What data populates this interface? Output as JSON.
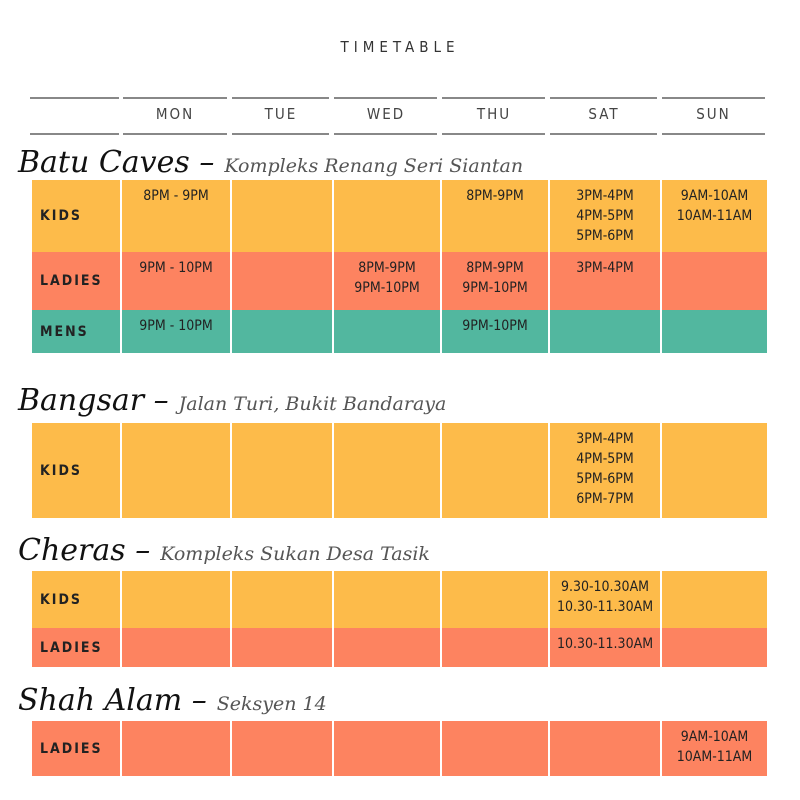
{
  "title": "TIMETABLE",
  "days": [
    "MON",
    "TUE",
    "WED",
    "THU",
    "SAT",
    "SUN"
  ],
  "colors": {
    "kids": "#fdbb4a",
    "ladies": "#fd8360",
    "mens": "#52b79f"
  },
  "locations": [
    {
      "name": "Batu Caves –",
      "address": "Kompleks Renang Seri Siantan",
      "rows": [
        {
          "label": "KIDS",
          "type": "kids",
          "cells": [
            "8PM - 9PM",
            "",
            "",
            "8PM-9PM",
            "3PM-4PM\n4PM-5PM\n5PM-6PM",
            "9AM-10AM\n10AM-11AM"
          ]
        },
        {
          "label": "LADIES",
          "type": "ladies",
          "cells": [
            "9PM - 10PM",
            "",
            "8PM-9PM\n9PM-10PM",
            "8PM-9PM\n9PM-10PM",
            "3PM-4PM",
            ""
          ]
        },
        {
          "label": "MENS",
          "type": "mens",
          "cells": [
            "9PM - 10PM",
            "",
            "",
            "9PM-10PM",
            "",
            ""
          ]
        }
      ]
    },
    {
      "name": "Bangsar –",
      "address": "Jalan Turi, Bukit Bandaraya",
      "rows": [
        {
          "label": "KIDS",
          "type": "kids",
          "cells": [
            "",
            "",
            "",
            "",
            "3PM-4PM\n4PM-5PM\n5PM-6PM\n6PM-7PM",
            ""
          ]
        }
      ]
    },
    {
      "name": "Cheras –",
      "address": "Kompleks Sukan Desa Tasik",
      "rows": [
        {
          "label": "KIDS",
          "type": "kids",
          "cells": [
            "",
            "",
            "",
            "",
            "9.30-10.30AM\n10.30-11.30AM",
            ""
          ]
        },
        {
          "label": "LADIES",
          "type": "ladies",
          "cells": [
            "",
            "",
            "",
            "",
            "10.30-11.30AM",
            ""
          ]
        }
      ]
    },
    {
      "name": "Shah Alam –",
      "address": "Seksyen 14",
      "rows": [
        {
          "label": "LADIES",
          "type": "ladies",
          "cells": [
            "",
            "",
            "",
            "",
            "",
            "9AM-10AM\n10AM-11AM"
          ]
        }
      ]
    }
  ]
}
